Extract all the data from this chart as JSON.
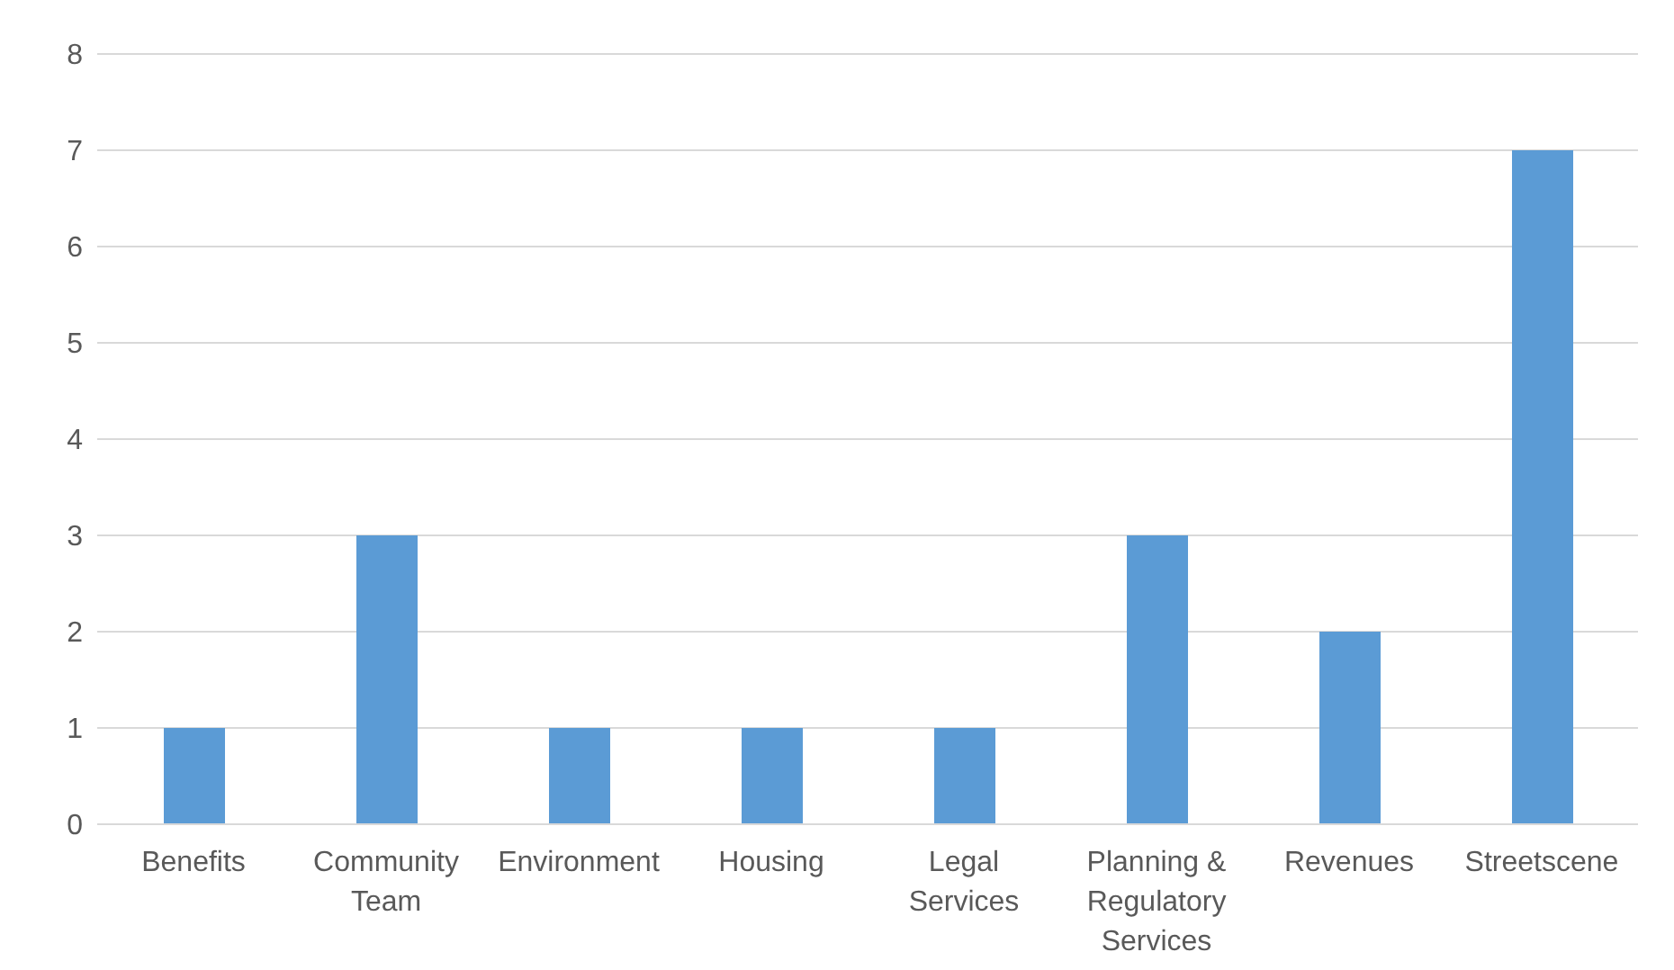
{
  "chart_data": {
    "type": "bar",
    "categories": [
      "Benefits",
      "Community Team",
      "Environment",
      "Housing",
      "Legal Services",
      "Planning & Regulatory Services",
      "Revenues",
      "Streetscene"
    ],
    "values": [
      1,
      3,
      1,
      1,
      1,
      3,
      2,
      7
    ],
    "color": "#5b9bd5",
    "ylim": [
      0,
      8
    ],
    "yticks": [
      0,
      1,
      2,
      3,
      4,
      5,
      6,
      7,
      8
    ],
    "grid": "y"
  }
}
